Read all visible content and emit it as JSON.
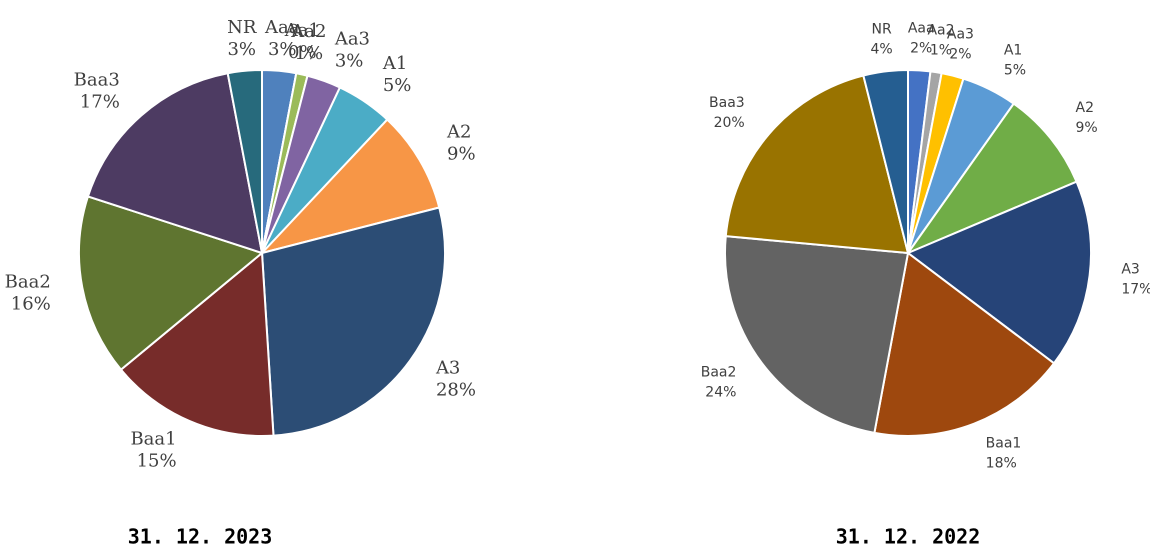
{
  "chart_data": [
    {
      "type": "pie",
      "title": "31. 12. 2023",
      "categories": [
        "Aaa",
        "Aa1",
        "Aa2",
        "Aa3",
        "A1",
        "A2",
        "A3",
        "Baa1",
        "Baa2",
        "Baa3",
        "NR"
      ],
      "values": [
        3,
        0,
        1,
        3,
        5,
        9,
        28,
        15,
        16,
        17,
        3
      ],
      "value_labels": [
        "3%",
        "0%",
        "1%",
        "3%",
        "5%",
        "9%",
        "28%",
        "15%",
        "16%",
        "17%",
        "3%"
      ],
      "colors": [
        "#4f81bd",
        "#c0504d",
        "#9bbb59",
        "#8064a2",
        "#4bacc6",
        "#f79646",
        "#2c4d75",
        "#772c2a",
        "#5f7530",
        "#4d3b62",
        "#276a7c"
      ]
    },
    {
      "type": "pie",
      "title": "31. 12. 2022",
      "categories": [
        "Aaa",
        "Aa2",
        "Aa3",
        "A1",
        "A2",
        "A3",
        "Baa1",
        "Baa2",
        "Baa3",
        "NR"
      ],
      "values": [
        2,
        1,
        2,
        5,
        9,
        17,
        18,
        24,
        20,
        4
      ],
      "value_labels": [
        "2%",
        "1%",
        "2%",
        "5%",
        "9%",
        "17%",
        "18%",
        "24%",
        "20%",
        "4%"
      ],
      "colors": [
        "#4472c4",
        "#a5a5a5",
        "#ffc000",
        "#5b9bd5",
        "#70ad47",
        "#264478",
        "#9e480e",
        "#636363",
        "#997300",
        "#255e91"
      ]
    }
  ]
}
